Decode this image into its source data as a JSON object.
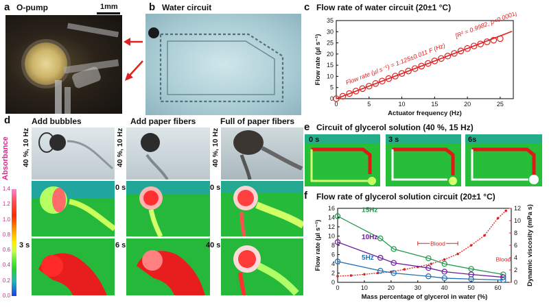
{
  "panels": {
    "a": {
      "letter": "a",
      "title": "O-pump",
      "scale": "1mm"
    },
    "b": {
      "letter": "b",
      "title": "Water circuit"
    },
    "c": {
      "letter": "c",
      "title": "Flow rate of water circuit (20±1 °C)"
    },
    "d": {
      "letter": "d",
      "columns": [
        "Add bubbles",
        "Add paper fibers",
        "Full of paper fibers"
      ],
      "side_label": "40 %, 10 Hz",
      "times_row1": [
        "0 s",
        "0 s",
        "0 s"
      ],
      "times_row2": [
        "3 s",
        "6 s",
        "40 s"
      ],
      "colorbar_title": "Absorbance",
      "colorbar_ticks": [
        "1.4",
        "1.2",
        "1.0",
        "0.8",
        "0.6",
        "0.4",
        "0.2",
        "0.0"
      ]
    },
    "e": {
      "letter": "e",
      "title": "Circuit of glycerol solution (40 %, 15 Hz)",
      "times": [
        "0 s",
        "3 s",
        "6s"
      ]
    },
    "f": {
      "letter": "f",
      "title": "Flow rate of glycerol solution circuit (20±1 °C)"
    }
  },
  "chart_data": [
    {
      "panel": "c",
      "type": "scatter",
      "title": "Flow rate of water circuit (20±1 °C)",
      "xlabel": "Actuator frequency (Hz)",
      "ylabel": "Flow rate (µl s⁻¹)",
      "xlim": [
        0,
        27
      ],
      "ylim": [
        0,
        35
      ],
      "xticks": [
        0,
        5,
        10,
        15,
        20,
        25
      ],
      "yticks": [
        0,
        5,
        10,
        15,
        20,
        25,
        30,
        35
      ],
      "x": [
        0,
        1,
        2,
        3,
        4,
        5,
        6,
        7,
        8,
        9,
        10,
        11,
        12,
        13,
        14,
        15,
        16,
        17,
        18,
        19,
        20,
        21,
        22,
        23,
        24,
        25
      ],
      "y": [
        0,
        1.1,
        2.3,
        3.4,
        4.5,
        5.6,
        6.8,
        7.9,
        9.0,
        10.1,
        11.3,
        12.4,
        13.5,
        14.6,
        15.8,
        16.9,
        18.0,
        19.1,
        20.3,
        21.4,
        22.5,
        23.6,
        24.5,
        25.5,
        26.2,
        26.9
      ],
      "fit": {
        "slope": 1.125,
        "equation": "Flow rate (µl s⁻¹) = 1.125±0.011 F (Hz)",
        "stats": "[R² = 0.9982, p<0.0001]"
      },
      "color": "#e02020"
    },
    {
      "panel": "f",
      "type": "line",
      "title": "Flow rate of glycerol solution circuit (20±1 °C)",
      "xlabel": "Mass percentage of glycerol in water (%)",
      "ylabel": "Flow rate (µl s⁻¹)",
      "y2label": "Dynamic viscosity (mPa s)",
      "xlim": [
        0,
        65
      ],
      "ylim": [
        0,
        16
      ],
      "y2lim": [
        0,
        12
      ],
      "xticks": [
        0,
        10,
        20,
        30,
        40,
        50,
        60
      ],
      "yticks": [
        0,
        2,
        4,
        6,
        8,
        10,
        12,
        14,
        16
      ],
      "y2ticks": [
        0,
        2,
        4,
        6,
        8,
        10,
        12
      ],
      "x": [
        0,
        16,
        21,
        34,
        40,
        50,
        62
      ],
      "series": [
        {
          "name": "15Hz",
          "values": [
            14.3,
            9.5,
            7.2,
            5.2,
            4.0,
            2.9,
            1.7
          ],
          "color": "#1f9a4b"
        },
        {
          "name": "10Hz",
          "values": [
            8.7,
            5.3,
            4.2,
            3.1,
            2.3,
            1.7,
            1.1
          ],
          "color": "#6a1b9a"
        },
        {
          "name": "5Hz",
          "values": [
            4.5,
            2.5,
            2.0,
            1.3,
            0.9,
            0.7,
            0.5
          ],
          "color": "#1e6fb5"
        }
      ],
      "viscosity": {
        "x": [
          0,
          5,
          10,
          15,
          20,
          25,
          30,
          35,
          40,
          45,
          50,
          55,
          60,
          63
        ],
        "values": [
          1.0,
          1.1,
          1.3,
          1.5,
          1.7,
          2.1,
          2.5,
          3.0,
          3.7,
          4.6,
          6.0,
          7.6,
          10.4,
          11.6
        ],
        "color": "#e02020"
      },
      "annotations": [
        {
          "text": "Blood",
          "x_range": [
            30,
            45
          ],
          "y2": 6.3
        },
        {
          "text": "Blood",
          "x": 62,
          "y2": 3.4
        }
      ]
    }
  ]
}
